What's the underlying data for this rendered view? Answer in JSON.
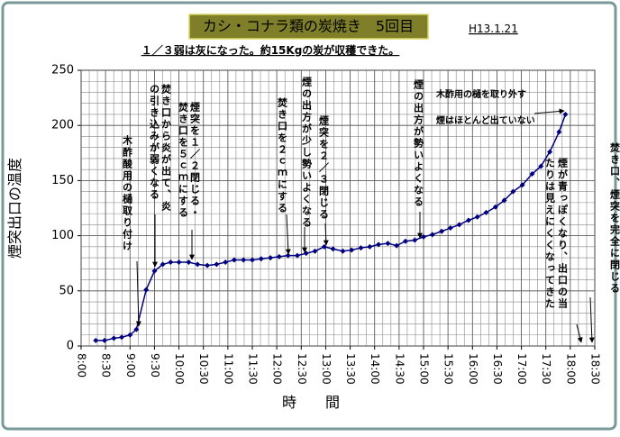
{
  "chart_data": {
    "type": "line",
    "title": "カシ・コナラ類の炭焼き　5回目",
    "date": "H13.1.21",
    "subtitle": "１／３弱は灰になった。約15Kgの炭が収穫できた。",
    "x_label": "時　　間",
    "y_label": "煙突出口の温度",
    "x": [
      8.3,
      8.48,
      8.67,
      8.83,
      9.0,
      9.13,
      9.33,
      9.5,
      9.67,
      9.83,
      10.0,
      10.2,
      10.38,
      10.58,
      10.77,
      10.95,
      11.13,
      11.32,
      11.5,
      11.68,
      11.87,
      12.05,
      12.23,
      12.42,
      12.6,
      12.78,
      12.97,
      13.15,
      13.35,
      13.53,
      13.72,
      13.9,
      14.08,
      14.27,
      14.45,
      14.63,
      14.82,
      15.0,
      15.18,
      15.37,
      15.55,
      15.73,
      15.92,
      16.1,
      16.28,
      16.47,
      16.65,
      16.83,
      17.02,
      17.22,
      17.4,
      17.58,
      17.77,
      17.9
    ],
    "series": [
      {
        "color": "#000080",
        "values": [
          5,
          5,
          7,
          8,
          10,
          15,
          51,
          68,
          74,
          76,
          76,
          76,
          74,
          73,
          74,
          76,
          78,
          78,
          78,
          79,
          80,
          81,
          82,
          82,
          84,
          86,
          90,
          88,
          86,
          87,
          89,
          90,
          92,
          93,
          91,
          95,
          96,
          99,
          101,
          104,
          107,
          110,
          114,
          117,
          121,
          126,
          132,
          140,
          146,
          156,
          163,
          176,
          194,
          210
        ]
      }
    ],
    "xlim": [
      8,
      18.5
    ],
    "xticks": [
      {
        "value": 8,
        "label": "8:00"
      },
      {
        "value": 8.5,
        "label": "8:30"
      },
      {
        "value": 9,
        "label": "9:00"
      },
      {
        "value": 9.5,
        "label": "9:30"
      },
      {
        "value": 10,
        "label": "10:00"
      },
      {
        "value": 10.5,
        "label": "10:30"
      },
      {
        "value": 11,
        "label": "11:00"
      },
      {
        "value": 11.5,
        "label": "11:30"
      },
      {
        "value": 12,
        "label": "12:00"
      },
      {
        "value": 12.5,
        "label": "12:30"
      },
      {
        "value": 13,
        "label": "13:00"
      },
      {
        "value": 13.5,
        "label": "13:30"
      },
      {
        "value": 14,
        "label": "14:00"
      },
      {
        "value": 14.5,
        "label": "14:30"
      },
      {
        "value": 15,
        "label": "15:00"
      },
      {
        "value": 15.5,
        "label": "15:30"
      },
      {
        "value": 16,
        "label": "16:00"
      },
      {
        "value": 16.5,
        "label": "16:30"
      },
      {
        "value": 17,
        "label": "17:00"
      },
      {
        "value": 17.5,
        "label": "17:30"
      },
      {
        "value": 18,
        "label": "18:00"
      },
      {
        "value": 18.5,
        "label": "18:30"
      }
    ],
    "ylim": [
      0,
      250
    ],
    "yticks": [
      0,
      50,
      100,
      150,
      200,
      250
    ],
    "grid": true,
    "annotations": [
      "木酢酸用の樋取り付け",
      "焚き口から炎が出て、炎",
      "の引き込みが弱くなる",
      "焚き口を５ｃｍにする",
      "煙突を１／２閉じる・",
      "焚き口を２ｃｍにする",
      "煙の出方が少し勢いよくなる",
      "煙突を２／３閉じる",
      "煙の出方が勢いよくなる",
      "木酢用の樋を取り外す",
      "煙はほとんど出ていない",
      "焚き口、煙突を完全に閉じる",
      "煙が青っぽくなり、出口の当",
      "たりは見えにくくなってきた"
    ]
  }
}
